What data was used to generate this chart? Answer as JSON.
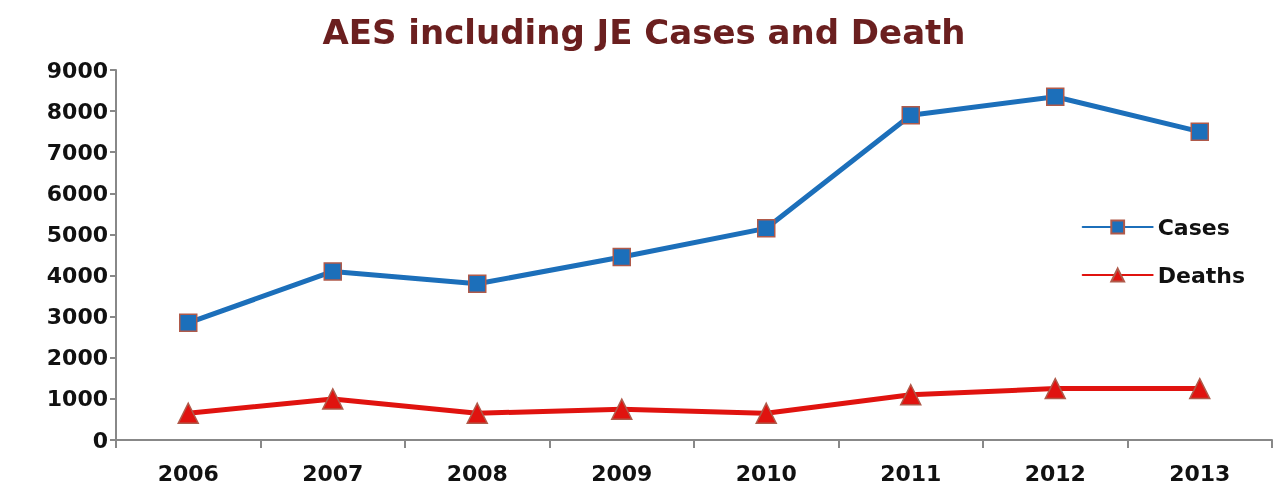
{
  "chart_data": {
    "type": "line",
    "title": "AES including JE Cases and Death",
    "categories": [
      "2006",
      "2007",
      "2008",
      "2009",
      "2010",
      "2011",
      "2012",
      "2013"
    ],
    "series": [
      {
        "name": "Cases",
        "color": "#1c6fba",
        "marker": "square",
        "values": [
          2850,
          4100,
          3800,
          4450,
          5150,
          7900,
          8350,
          7500
        ]
      },
      {
        "name": "Deaths",
        "color": "#e0130f",
        "marker": "triangle",
        "values": [
          650,
          1000,
          650,
          750,
          650,
          1100,
          1250,
          1250
        ]
      }
    ],
    "ylim": [
      0,
      9000
    ],
    "yticks": [
      0,
      1000,
      2000,
      3000,
      4000,
      5000,
      6000,
      7000,
      8000,
      9000
    ],
    "grid": false,
    "legend": "right",
    "line_style": "solid"
  }
}
